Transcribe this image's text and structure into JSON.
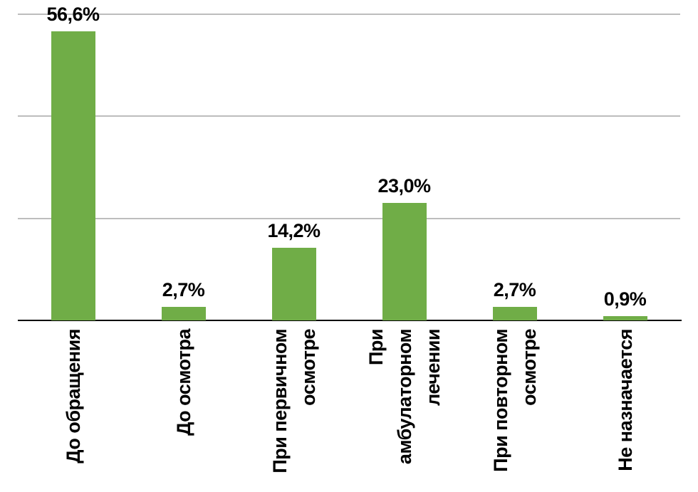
{
  "chart_data": {
    "type": "bar",
    "title": "",
    "xlabel": "",
    "ylabel": "",
    "categories": [
      "До обращения",
      "До осмотра",
      "При первичном\nосмотре",
      "При амбулаторном\nлечении",
      "При повторном\nосмотре",
      "Не назначается"
    ],
    "values": [
      56.6,
      2.7,
      14.2,
      23.0,
      2.7,
      0.9
    ],
    "value_labels": [
      "56,6%",
      "2,7%",
      "14,2%",
      "23,0%",
      "2,7%",
      "0,9%"
    ],
    "ylim": [
      0,
      60
    ],
    "gridlines_percent": [
      20,
      40,
      60
    ],
    "grid": "horizontal",
    "legend": "none",
    "bar_color": "#70AD47",
    "gridline_color": "#BDBDBD",
    "axis_color": "#000000",
    "text_color": "#000000",
    "background": "#FFFFFF"
  }
}
